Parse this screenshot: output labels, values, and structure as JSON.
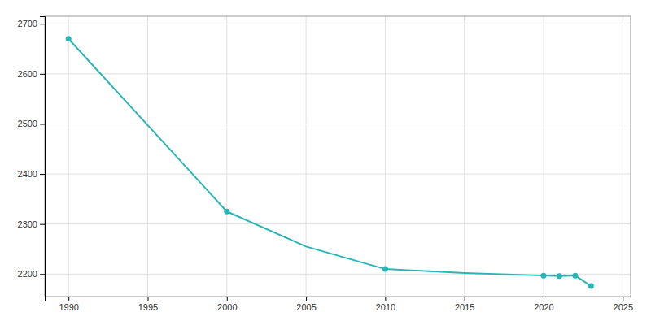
{
  "chart_data": {
    "type": "line",
    "x": [
      1990,
      2000,
      2005,
      2010,
      2015,
      2020,
      2021,
      2022,
      2023
    ],
    "series": [
      {
        "type": "line",
        "color": "#2ab5b5",
        "values": [
          2670,
          2325,
          2255,
          2210,
          2202,
          2197,
          2196,
          2197,
          2176
        ]
      },
      {
        "type": "scatter",
        "color": "#2ab5b5",
        "marker": "circle",
        "values": [
          2670,
          2325,
          null,
          2210,
          null,
          2197,
          2196,
          2197,
          2176
        ]
      }
    ],
    "xlim": [
      1988.5,
      2025.5
    ],
    "ylim": [
      2155,
      2715
    ],
    "xticks": [
      1990,
      1995,
      2000,
      2005,
      2010,
      2015,
      2020,
      2025
    ],
    "yticks": [
      2200,
      2300,
      2400,
      2500,
      2600,
      2700
    ],
    "grid": true
  }
}
